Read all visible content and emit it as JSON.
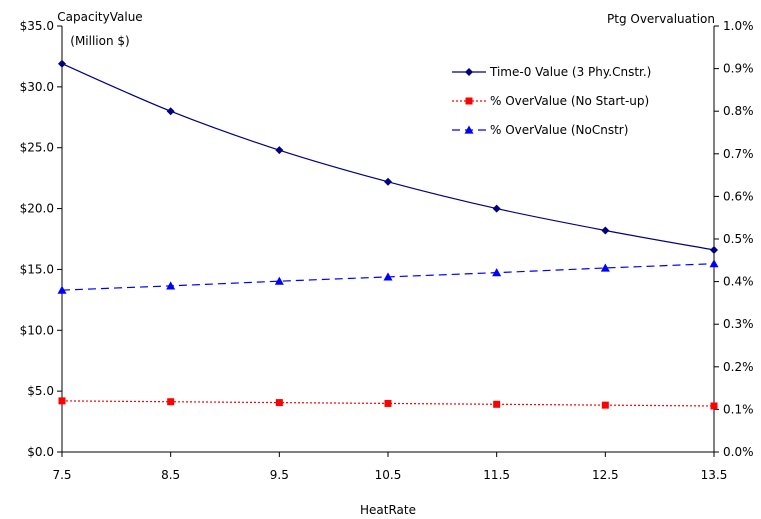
{
  "chart_data": {
    "type": "line",
    "x": [
      7.5,
      8.5,
      9.5,
      10.5,
      11.5,
      12.5,
      13.5
    ],
    "x_tick_labels": [
      "7.5",
      "8.5",
      "9.5",
      "10.5",
      "11.5",
      "12.5",
      "13.5"
    ],
    "xlabel": "HeatRate",
    "xlim": [
      7.5,
      13.5
    ],
    "ylabel_left": [
      "CapacityValue",
      "(Million $)"
    ],
    "ylabel_right": "Ptg Overvaluation",
    "ylim_left": [
      0,
      35
    ],
    "ylim_right": [
      0,
      1.0
    ],
    "y_tick_labels_left": [
      "$0.0",
      "$5.0",
      "$10.0",
      "$15.0",
      "$20.0",
      "$25.0",
      "$30.0",
      "$35.0"
    ],
    "y_tick_labels_right": [
      "0.0%",
      "0.1%",
      "0.2%",
      "0.3%",
      "0.4%",
      "0.5%",
      "0.6%",
      "0.7%",
      "0.8%",
      "0.9%",
      "1.0%"
    ],
    "grid": false,
    "legend_position": "top-right",
    "series": [
      {
        "name": "Time-0 Value (3 Phy.Cnstr.)",
        "axis": "left",
        "values": [
          31.9,
          28.0,
          24.8,
          22.2,
          20.0,
          18.2,
          16.6
        ],
        "color": "#000080",
        "marker": "diamond",
        "line_style": "solid"
      },
      {
        "name": "% OverValue (No Start-up)",
        "axis": "right",
        "values": [
          0.12,
          0.118,
          0.116,
          0.114,
          0.112,
          0.11,
          0.108
        ],
        "color": "#ff0000",
        "marker": "square",
        "line_style": "dotted"
      },
      {
        "name": "% OverValue (NoCnstr)",
        "axis": "right",
        "values": [
          0.38,
          0.39,
          0.401,
          0.411,
          0.421,
          0.432,
          0.442
        ],
        "color": "#0000ff",
        "marker": "triangle",
        "line_style": "dashed"
      }
    ]
  }
}
